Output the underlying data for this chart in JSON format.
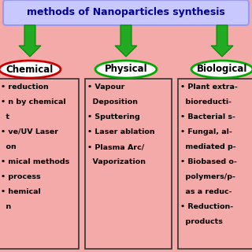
{
  "background_color": "#f5aaaa",
  "title": "methods of Nanoparticles synthesis",
  "title_bg": "#c8c8ff",
  "title_border": "#9999ee",
  "title_color": "#000099",
  "arrow_color": "#22aa22",
  "arrow_edge": "#008800",
  "categories": [
    "Chemical",
    "Physical",
    "Biological"
  ],
  "cat_border_colors": [
    "#cc0000",
    "#00aa00",
    "#00aa00"
  ],
  "category_bg": "#ffffff",
  "box_bg": "#f5aaaa",
  "box_border": "#333333",
  "physical_text": [
    "• Vapour",
    "  Deposition",
    "• Sputtering",
    "• Laser ablation",
    "• Plasma Arc/",
    "  Vaporization"
  ],
  "chemical_text": [
    "• reduction",
    "• n by chemical",
    "  t",
    "• ve/UV Laser",
    "  on",
    "• mical methods",
    "• process",
    "• hemical",
    "  n"
  ],
  "biological_text": [
    "• Plant extra-",
    "  bioreducti-",
    "• Bacterial s-",
    "• Fungal, al-",
    "  mediated p-",
    "• Biobased o-",
    "  polymers/p-",
    "  as a reduc-",
    "• Reduction-",
    "  products"
  ]
}
